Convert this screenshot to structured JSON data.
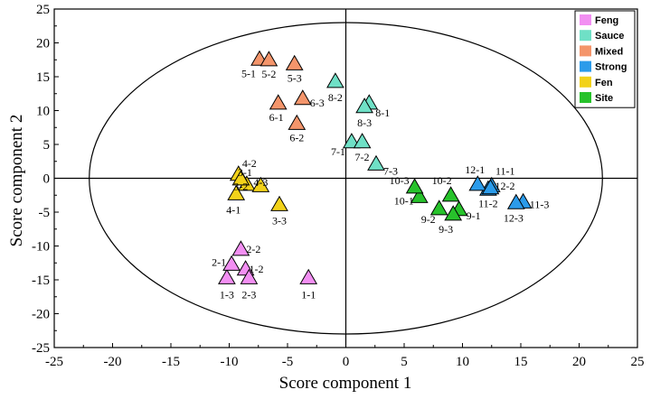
{
  "chart_data": {
    "type": "scatter",
    "xlabel": "Score component 1",
    "ylabel": "Score component 2",
    "xlim": [
      -25,
      25
    ],
    "ylim": [
      -25,
      25
    ],
    "xticks": [
      -25,
      -20,
      -15,
      -10,
      -5,
      0,
      5,
      10,
      15,
      20,
      25
    ],
    "yticks": [
      -25,
      -20,
      -15,
      -10,
      -5,
      0,
      5,
      10,
      15,
      20,
      25
    ],
    "zero_lines": true,
    "ellipse": {
      "cx": 0,
      "cy": 0,
      "rx": 22,
      "ry": 23
    },
    "marker": "triangle",
    "legend_position": "top-right",
    "series": [
      {
        "name": "Feng",
        "color": "#f28ff2",
        "points": [
          {
            "label": "1-1",
            "x": -3.2,
            "y": -14.8
          },
          {
            "label": "1-2",
            "x": -8.6,
            "y": -13.5
          },
          {
            "label": "1-3",
            "x": -10.2,
            "y": -14.8
          },
          {
            "label": "2-1",
            "x": -9.8,
            "y": -12.8
          },
          {
            "label": "2-2",
            "x": -9.0,
            "y": -10.6
          },
          {
            "label": "2-3",
            "x": -8.3,
            "y": -14.8
          }
        ]
      },
      {
        "name": "Sauce",
        "color": "#6fe0c6",
        "points": [
          {
            "label": "7-1",
            "x": 0.5,
            "y": 5.3
          },
          {
            "label": "7-2",
            "x": 1.4,
            "y": 5.3
          },
          {
            "label": "7-3",
            "x": 2.6,
            "y": 2.0
          },
          {
            "label": "8-1",
            "x": 2.0,
            "y": 11.0
          },
          {
            "label": "8-2",
            "x": -0.9,
            "y": 14.2
          },
          {
            "label": "8-3",
            "x": 1.6,
            "y": 10.5
          }
        ]
      },
      {
        "name": "Mixed",
        "color": "#f4956b",
        "points": [
          {
            "label": "5-1",
            "x": -7.4,
            "y": 17.5
          },
          {
            "label": "5-2",
            "x": -6.6,
            "y": 17.4
          },
          {
            "label": "5-3",
            "x": -4.4,
            "y": 16.8
          },
          {
            "label": "6-1",
            "x": -5.8,
            "y": 11.0
          },
          {
            "label": "6-2",
            "x": -4.2,
            "y": 8.0
          },
          {
            "label": "6-3",
            "x": -3.7,
            "y": 11.7
          }
        ]
      },
      {
        "name": "Strong",
        "color": "#2b9bea",
        "points": [
          {
            "label": "11-1",
            "x": 12.5,
            "y": -1.2
          },
          {
            "label": "11-2",
            "x": 12.2,
            "y": -1.7
          },
          {
            "label": "11-3",
            "x": 15.2,
            "y": -3.6
          },
          {
            "label": "12-1",
            "x": 11.3,
            "y": -1.0
          },
          {
            "label": "12-2",
            "x": 12.4,
            "y": -1.5
          },
          {
            "label": "12-3",
            "x": 14.6,
            "y": -3.7
          }
        ]
      },
      {
        "name": "Fen",
        "color": "#f2d21a",
        "points": [
          {
            "label": "3-1",
            "x": -8.5,
            "y": -1.0
          },
          {
            "label": "3-2",
            "x": -7.3,
            "y": -1.2
          },
          {
            "label": "3-3",
            "x": -5.7,
            "y": -4.0
          },
          {
            "label": "4-1",
            "x": -9.4,
            "y": -2.4
          },
          {
            "label": "4-2",
            "x": -9.2,
            "y": 0.5
          },
          {
            "label": "4-3",
            "x": -9.0,
            "y": -0.2
          }
        ]
      },
      {
        "name": "Site",
        "color": "#27c22b",
        "points": [
          {
            "label": "9-1",
            "x": 9.7,
            "y": -4.7
          },
          {
            "label": "9-2",
            "x": 8.0,
            "y": -4.6
          },
          {
            "label": "9-3",
            "x": 9.2,
            "y": -5.4
          },
          {
            "label": "10-1",
            "x": 6.3,
            "y": -2.8
          },
          {
            "label": "10-2",
            "x": 9.0,
            "y": -2.6
          },
          {
            "label": "10-3",
            "x": 5.9,
            "y": -1.4
          }
        ]
      }
    ]
  }
}
